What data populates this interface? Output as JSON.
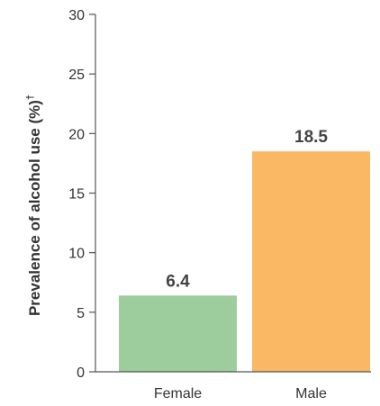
{
  "chart_data": {
    "type": "bar",
    "categories": [
      "Female",
      "Male"
    ],
    "values": [
      6.4,
      18.5
    ],
    "data_labels": [
      "6.4",
      "18.5"
    ],
    "colors": [
      "#9dcc9d",
      "#fab764"
    ],
    "title": "",
    "xlabel": "",
    "ylabel": "Prevalence of alcohol use (%)",
    "ylabel_superscript": "†",
    "ylim": [
      0,
      30
    ],
    "yticks": [
      0,
      5,
      10,
      15,
      20,
      25,
      30
    ],
    "grid": false,
    "legend": "none"
  }
}
